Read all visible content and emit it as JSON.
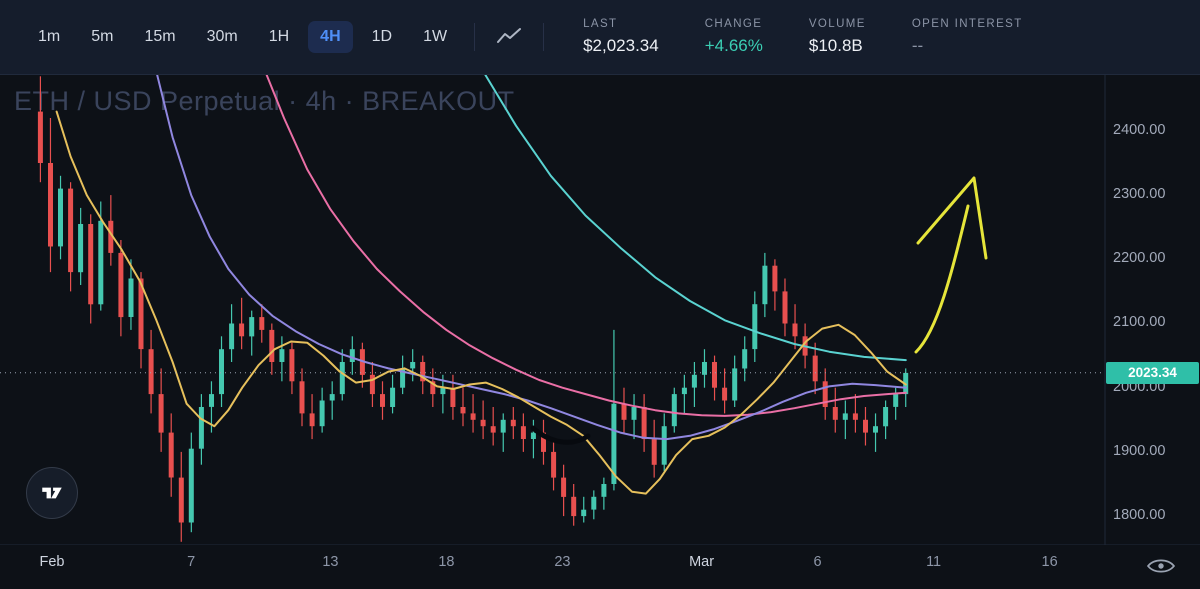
{
  "toolbar": {
    "timeframes": [
      {
        "label": "1m"
      },
      {
        "label": "5m"
      },
      {
        "label": "15m"
      },
      {
        "label": "30m"
      },
      {
        "label": "1H"
      },
      {
        "label": "4H",
        "active": true
      },
      {
        "label": "1D"
      },
      {
        "label": "1W"
      }
    ],
    "stats": [
      {
        "label": "LAST",
        "value": "$2,023.34"
      },
      {
        "label": "CHANGE",
        "value": "+4.66%"
      },
      {
        "label": "VOLUME",
        "value": "$10.8B"
      },
      {
        "label": "OPEN INTEREST",
        "value": "--"
      }
    ]
  },
  "colors": {
    "background": "#0d1117",
    "topbar": "#151d2c",
    "accent_blue": "#4f8ff7",
    "up": "#45c8b0",
    "down": "#e8504f",
    "price_label": "#2fbfa8",
    "ma_fast_yellow": "#e6c05c",
    "ma_mid_purple": "#9087e0",
    "ma_slow_pink": "#ea6fa6",
    "ma_slowest_cyan": "#5ad3d1",
    "drawing_yellow": "#e6e53a",
    "change_green": "#3bcfb4"
  },
  "chart_data": {
    "type": "candlestick",
    "title": "ETH / USD Perpetual · 4h · BREAKOUT",
    "symbol": "ETH / USD Perpetual",
    "interval": "4h",
    "last": 2023.34,
    "change_pct": 4.66,
    "volume": "$10.8B",
    "open_interest": "--",
    "y_axis": {
      "min": 1755,
      "max": 2487,
      "ticks": [
        2400,
        2300,
        2200,
        2100,
        2000,
        1900,
        1800
      ]
    },
    "x_axis": {
      "ticks": [
        {
          "label": "Feb",
          "day": 0,
          "major": true
        },
        {
          "label": "7",
          "day": 6
        },
        {
          "label": "13",
          "day": 12
        },
        {
          "label": "18",
          "day": 17
        },
        {
          "label": "23",
          "day": 22
        },
        {
          "label": "Mar",
          "day": 28,
          "major": true
        },
        {
          "label": "6",
          "day": 33
        },
        {
          "label": "11",
          "day": 38
        },
        {
          "label": "16",
          "day": 43
        }
      ]
    },
    "candles": {
      "start_day": -0.5,
      "day_step": 0.4337,
      "up_color": "#45c8b0",
      "down_color": "#e8504f",
      "ohlc": [
        [
          2430,
          2485,
          2320,
          2350
        ],
        [
          2350,
          2420,
          2180,
          2220
        ],
        [
          2220,
          2330,
          2200,
          2310
        ],
        [
          2310,
          2320,
          2150,
          2180
        ],
        [
          2180,
          2280,
          2160,
          2255
        ],
        [
          2255,
          2270,
          2100,
          2130
        ],
        [
          2130,
          2290,
          2120,
          2260
        ],
        [
          2260,
          2300,
          2190,
          2210
        ],
        [
          2210,
          2230,
          2080,
          2110
        ],
        [
          2110,
          2200,
          2090,
          2170
        ],
        [
          2170,
          2180,
          2030,
          2060
        ],
        [
          2060,
          2090,
          1960,
          1990
        ],
        [
          1990,
          2030,
          1900,
          1930
        ],
        [
          1930,
          1960,
          1830,
          1860
        ],
        [
          1860,
          1900,
          1760,
          1790
        ],
        [
          1790,
          1930,
          1775,
          1905
        ],
        [
          1905,
          1990,
          1880,
          1970
        ],
        [
          1970,
          2010,
          1930,
          1990
        ],
        [
          1990,
          2080,
          1970,
          2060
        ],
        [
          2060,
          2130,
          2040,
          2100
        ],
        [
          2100,
          2140,
          2060,
          2080
        ],
        [
          2080,
          2120,
          2050,
          2110
        ],
        [
          2110,
          2130,
          2070,
          2090
        ],
        [
          2090,
          2100,
          2020,
          2040
        ],
        [
          2040,
          2080,
          2010,
          2060
        ],
        [
          2060,
          2070,
          1990,
          2010
        ],
        [
          2010,
          2030,
          1940,
          1960
        ],
        [
          1960,
          1990,
          1920,
          1940
        ],
        [
          1940,
          2000,
          1930,
          1980
        ],
        [
          1980,
          2010,
          1950,
          1990
        ],
        [
          1990,
          2060,
          1980,
          2040
        ],
        [
          2040,
          2080,
          2020,
          2060
        ],
        [
          2060,
          2070,
          2000,
          2020
        ],
        [
          2020,
          2040,
          1970,
          1990
        ],
        [
          1990,
          2010,
          1950,
          1970
        ],
        [
          1970,
          2020,
          1960,
          2000
        ],
        [
          2000,
          2050,
          1990,
          2030
        ],
        [
          2030,
          2060,
          2010,
          2040
        ],
        [
          2040,
          2050,
          1990,
          2010
        ],
        [
          2010,
          2030,
          1970,
          1990
        ],
        [
          1990,
          2020,
          1960,
          2000
        ],
        [
          2000,
          2020,
          1950,
          1970
        ],
        [
          1970,
          2000,
          1940,
          1960
        ],
        [
          1960,
          1990,
          1930,
          1950
        ],
        [
          1950,
          1980,
          1920,
          1940
        ],
        [
          1940,
          1970,
          1910,
          1930
        ],
        [
          1930,
          1960,
          1900,
          1950
        ],
        [
          1950,
          1970,
          1920,
          1940
        ],
        [
          1940,
          1960,
          1900,
          1920
        ],
        [
          1920,
          1950,
          1890,
          1930
        ],
        [
          1930,
          1950,
          1880,
          1900
        ],
        [
          1900,
          1920,
          1840,
          1860
        ],
        [
          1860,
          1880,
          1800,
          1830
        ],
        [
          1830,
          1850,
          1785,
          1800
        ],
        [
          1800,
          1830,
          1790,
          1810
        ],
        [
          1810,
          1840,
          1795,
          1830
        ],
        [
          1830,
          1860,
          1810,
          1850
        ],
        [
          1850,
          2090,
          1840,
          1975
        ],
        [
          1975,
          2000,
          1930,
          1950
        ],
        [
          1950,
          1990,
          1920,
          1970
        ],
        [
          1970,
          1990,
          1900,
          1920
        ],
        [
          1920,
          1950,
          1860,
          1880
        ],
        [
          1880,
          1960,
          1870,
          1940
        ],
        [
          1940,
          2000,
          1930,
          1990
        ],
        [
          1990,
          2020,
          1960,
          2000
        ],
        [
          2000,
          2040,
          1970,
          2020
        ],
        [
          2020,
          2060,
          2000,
          2040
        ],
        [
          2040,
          2050,
          1980,
          2000
        ],
        [
          2000,
          2030,
          1960,
          1980
        ],
        [
          1980,
          2050,
          1970,
          2030
        ],
        [
          2030,
          2080,
          2010,
          2060
        ],
        [
          2060,
          2150,
          2040,
          2130
        ],
        [
          2130,
          2210,
          2110,
          2190
        ],
        [
          2190,
          2200,
          2120,
          2150
        ],
        [
          2150,
          2170,
          2080,
          2100
        ],
        [
          2100,
          2130,
          2060,
          2080
        ],
        [
          2080,
          2100,
          2030,
          2050
        ],
        [
          2050,
          2070,
          1990,
          2010
        ],
        [
          2010,
          2030,
          1950,
          1970
        ],
        [
          1970,
          2000,
          1930,
          1950
        ],
        [
          1950,
          1980,
          1920,
          1960
        ],
        [
          1960,
          1990,
          1930,
          1950
        ],
        [
          1950,
          1970,
          1910,
          1930
        ],
        [
          1930,
          1960,
          1900,
          1940
        ],
        [
          1940,
          1980,
          1920,
          1970
        ],
        [
          1970,
          2000,
          1950,
          1990
        ],
        [
          1990,
          2030,
          1970,
          2023
        ]
      ]
    },
    "moving_averages": [
      {
        "name": "ma-slowest-cyan",
        "color": "#5ad3d1",
        "points": [
          [
            18.6,
            2492
          ],
          [
            20,
            2408
          ],
          [
            21.5,
            2330
          ],
          [
            23,
            2268
          ],
          [
            24.5,
            2218
          ],
          [
            26,
            2172
          ],
          [
            27.5,
            2135
          ],
          [
            29,
            2105
          ],
          [
            30.5,
            2085
          ],
          [
            32,
            2068
          ],
          [
            33.5,
            2056
          ],
          [
            35,
            2048
          ],
          [
            36.8,
            2043
          ]
        ]
      },
      {
        "name": "ma-slow-pink",
        "color": "#ea6fa6",
        "points": [
          [
            9.2,
            2492
          ],
          [
            10,
            2420
          ],
          [
            11,
            2340
          ],
          [
            12,
            2278
          ],
          [
            13,
            2228
          ],
          [
            14,
            2185
          ],
          [
            15,
            2150
          ],
          [
            16,
            2118
          ],
          [
            17,
            2090
          ],
          [
            18,
            2066
          ],
          [
            19,
            2046
          ],
          [
            20,
            2028
          ],
          [
            21,
            2012
          ],
          [
            22,
            2000
          ],
          [
            23,
            1990
          ],
          [
            24,
            1980
          ],
          [
            25,
            1972
          ],
          [
            26,
            1965
          ],
          [
            27,
            1960
          ],
          [
            28,
            1957
          ],
          [
            29,
            1956
          ],
          [
            30,
            1958
          ],
          [
            31,
            1962
          ],
          [
            32,
            1968
          ],
          [
            33,
            1975
          ],
          [
            34,
            1982
          ],
          [
            35,
            1987
          ],
          [
            36,
            1990
          ],
          [
            36.8,
            1992
          ]
        ]
      },
      {
        "name": "ma-mid-purple",
        "color": "#9087e0",
        "points": [
          [
            4.5,
            2492
          ],
          [
            5.2,
            2390
          ],
          [
            6,
            2300
          ],
          [
            6.8,
            2235
          ],
          [
            7.6,
            2185
          ],
          [
            8.5,
            2145
          ],
          [
            9.5,
            2112
          ],
          [
            10.5,
            2088
          ],
          [
            11.5,
            2068
          ],
          [
            12.5,
            2052
          ],
          [
            13.5,
            2040
          ],
          [
            14.5,
            2030
          ],
          [
            15.5,
            2022
          ],
          [
            16.5,
            2014
          ],
          [
            17.5,
            2006
          ],
          [
            18.5,
            1998
          ],
          [
            19.5,
            1990
          ],
          [
            20.5,
            1980
          ],
          [
            21.5,
            1968
          ],
          [
            22.5,
            1955
          ],
          [
            23.5,
            1942
          ],
          [
            24.5,
            1930
          ],
          [
            25.5,
            1922
          ],
          [
            26.5,
            1920
          ],
          [
            27.5,
            1925
          ],
          [
            28.5,
            1935
          ],
          [
            29.5,
            1948
          ],
          [
            30.5,
            1962
          ],
          [
            31.5,
            1978
          ],
          [
            32.5,
            1992
          ],
          [
            33.5,
            2002
          ],
          [
            34.5,
            2006
          ],
          [
            35.5,
            2004
          ],
          [
            36.8,
            2000
          ]
        ]
      },
      {
        "name": "ma-fast-yellow",
        "color": "#e6c05c",
        "points": [
          [
            0.2,
            2430
          ],
          [
            0.8,
            2360
          ],
          [
            1.5,
            2300
          ],
          [
            2.2,
            2258
          ],
          [
            3,
            2215
          ],
          [
            3.8,
            2165
          ],
          [
            4.5,
            2105
          ],
          [
            5.2,
            2040
          ],
          [
            5.8,
            1975
          ],
          [
            6.4,
            1952
          ],
          [
            7,
            1940
          ],
          [
            7.6,
            1965
          ],
          [
            8.2,
            2000
          ],
          [
            8.9,
            2035
          ],
          [
            9.6,
            2060
          ],
          [
            10.3,
            2072
          ],
          [
            11,
            2070
          ],
          [
            11.7,
            2050
          ],
          [
            12.4,
            2025
          ],
          [
            13.1,
            2008
          ],
          [
            13.8,
            2012
          ],
          [
            14.5,
            2025
          ],
          [
            15.2,
            2030
          ],
          [
            15.9,
            2018
          ],
          [
            16.6,
            2002
          ],
          [
            17.3,
            1998
          ],
          [
            18,
            2005
          ],
          [
            18.7,
            2008
          ],
          [
            19.4,
            1998
          ],
          [
            20.1,
            1985
          ],
          [
            20.8,
            1970
          ],
          [
            21.5,
            1955
          ],
          [
            22.2,
            1942
          ],
          [
            22.9,
            1925
          ],
          [
            23.6,
            1895
          ],
          [
            24.3,
            1862
          ],
          [
            25,
            1838
          ],
          [
            25.6,
            1835
          ],
          [
            26.2,
            1858
          ],
          [
            26.9,
            1895
          ],
          [
            27.6,
            1920
          ],
          [
            28.3,
            1925
          ],
          [
            29,
            1938
          ],
          [
            29.7,
            1958
          ],
          [
            30.4,
            1982
          ],
          [
            31.1,
            2008
          ],
          [
            31.8,
            2040
          ],
          [
            32.5,
            2072
          ],
          [
            33.2,
            2092
          ],
          [
            33.9,
            2098
          ],
          [
            34.6,
            2082
          ],
          [
            35.3,
            2055
          ],
          [
            36,
            2025
          ],
          [
            36.8,
            2005
          ]
        ]
      }
    ],
    "price_line": {
      "price": 2023.34,
      "label": "2023.34",
      "color": "#2fbfa8"
    },
    "annotations": [
      {
        "type": "drawn-arrow",
        "color": "#e6e53a",
        "width": 3,
        "paths": [
          "M916 352 C938 330 952 272 968 206",
          "M918 243 L974 178 L986 258"
        ]
      },
      {
        "type": "drawn-scribble",
        "color": "#070a0f",
        "width": 5,
        "paths": [
          "M533 428 C550 443 572 447 588 436"
        ]
      }
    ]
  }
}
